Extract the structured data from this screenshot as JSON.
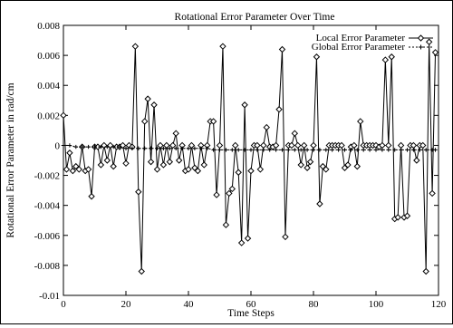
{
  "chart_data": {
    "type": "line",
    "title": "Rotational Error Parameter Over Time",
    "xlabel": "Time Steps",
    "ylabel": "Rotational Error Parameter in rad/cm",
    "xlim": [
      0,
      120
    ],
    "ylim": [
      -0.01,
      0.008
    ],
    "xticks": [
      0,
      20,
      40,
      60,
      80,
      100,
      120
    ],
    "yticks": [
      -0.01,
      -0.008,
      -0.006,
      -0.004,
      -0.002,
      0,
      0.002,
      0.004,
      0.006,
      0.008
    ],
    "xtick_labels": [
      "0",
      "20",
      "40",
      "60",
      "80",
      "100",
      "120"
    ],
    "ytick_labels": [
      "-0.01",
      "-0.008",
      "-0.006",
      "-0.004",
      "-0.002",
      "0",
      "0.002",
      "0.004",
      "0.006",
      "0.008"
    ],
    "grid": false,
    "legend_position": "top-right",
    "series": [
      {
        "name": "Local Error Parameter",
        "marker": "diamond",
        "color": "#000000",
        "x": [
          0,
          1,
          2,
          3,
          4,
          5,
          6,
          7,
          8,
          9,
          10,
          11,
          12,
          13,
          14,
          15,
          16,
          17,
          18,
          19,
          20,
          21,
          22,
          23,
          24,
          25,
          26,
          27,
          28,
          29,
          30,
          31,
          32,
          33,
          34,
          35,
          36,
          37,
          38,
          39,
          40,
          41,
          42,
          43,
          44,
          45,
          46,
          47,
          48,
          49,
          50,
          51,
          52,
          53,
          54,
          55,
          56,
          57,
          58,
          59,
          60,
          61,
          62,
          63,
          64,
          65,
          66,
          67,
          68,
          69,
          70,
          71,
          72,
          73,
          74,
          75,
          76,
          77,
          78,
          79,
          80,
          81,
          82,
          83,
          84,
          85,
          86,
          87,
          88,
          89,
          90,
          91,
          92,
          93,
          94,
          95,
          96,
          97,
          98,
          99,
          100,
          101,
          102,
          103,
          104,
          105,
          106,
          107,
          108,
          109,
          110,
          111,
          112,
          113,
          114,
          115,
          116,
          117,
          118,
          119
        ],
        "values": [
          0.002,
          -0.0016,
          -0.0005,
          -0.0017,
          -0.0014,
          -0.0016,
          -0.0001,
          -0.0017,
          -0.0016,
          -0.0034,
          -0.0001,
          -0.0001,
          -0.0013,
          0.0,
          -0.001,
          0.0,
          -0.0014,
          -0.0001,
          -0.0001,
          0.0,
          -0.0012,
          0.0,
          -0.0001,
          0.0066,
          -0.0031,
          -0.0084,
          0.0016,
          0.0031,
          -0.0011,
          0.0027,
          -0.0016,
          0.0,
          -0.0013,
          0.0,
          -0.0011,
          0.0,
          0.0008,
          -0.001,
          0.0,
          -0.0017,
          -0.0016,
          0.0,
          -0.0015,
          -0.0017,
          0.0,
          -0.0013,
          0.0,
          0.0016,
          0.0016,
          -0.0033,
          0.0,
          0.0066,
          -0.0053,
          -0.0032,
          -0.0029,
          0.0,
          -0.0018,
          -0.0065,
          0.0027,
          -0.0062,
          -0.0017,
          0.0,
          0.0,
          -0.0016,
          0.0,
          0.0012,
          -0.0001,
          -0.0001,
          0.0,
          0.0024,
          0.0064,
          -0.0061,
          0.0,
          0.0,
          0.0008,
          0.0,
          -0.0013,
          0.0,
          -0.0015,
          -0.0011,
          0.0,
          0.0059,
          -0.0039,
          -0.0014,
          -0.0016,
          0.0,
          0.0,
          0.0,
          0.0,
          0.0,
          -0.0015,
          -0.0013,
          -0.0001,
          0.0,
          -0.0014,
          0.0016,
          0.0,
          0.0,
          0.0,
          0.0,
          0.0,
          -0.0001,
          0.0,
          0.0057,
          0.0,
          0.0059,
          -0.0049,
          -0.0048,
          0.0,
          -0.0048,
          -0.0047,
          0.0,
          0.0,
          -0.001,
          0.0,
          0.0,
          -0.0084,
          0.0069,
          -0.0032,
          0.0062
        ]
      },
      {
        "name": "Global Error Parameter",
        "marker": "plus",
        "color": "#000000",
        "x": [
          0,
          2,
          4,
          6,
          8,
          10,
          12,
          14,
          16,
          18,
          20,
          22,
          24,
          26,
          28,
          30,
          32,
          34,
          36,
          38,
          40,
          42,
          44,
          46,
          48,
          50,
          52,
          54,
          56,
          58,
          60,
          62,
          64,
          66,
          68,
          70,
          72,
          74,
          76,
          78,
          80,
          82,
          84,
          86,
          88,
          90,
          92,
          94,
          96,
          98,
          100,
          102,
          104,
          106,
          108,
          110,
          112,
          114,
          116,
          118,
          119
        ],
        "values": [
          0.0,
          0.0,
          -0.0001,
          -0.0001,
          -0.0001,
          -0.0001,
          -0.0001,
          -0.0001,
          -0.0001,
          -0.0001,
          -0.0002,
          -0.0002,
          -0.0002,
          -0.0002,
          -0.0002,
          -0.0002,
          -0.0002,
          -0.0002,
          -0.0002,
          -0.0002,
          -0.0002,
          -0.0002,
          -0.0002,
          -0.0002,
          -0.0003,
          -0.0003,
          -0.0003,
          -0.0003,
          -0.0003,
          -0.0003,
          -0.0003,
          -0.0003,
          -0.0003,
          -0.0003,
          -0.0003,
          -0.0003,
          -0.0003,
          -0.0003,
          -0.0003,
          -0.0003,
          -0.0003,
          -0.0003,
          -0.0003,
          -0.0003,
          -0.0003,
          -0.0003,
          -0.0003,
          -0.0003,
          -0.0003,
          -0.0003,
          -0.0003,
          -0.0003,
          -0.0003,
          -0.0003,
          -0.0003,
          -0.0003,
          -0.0003,
          -0.0003,
          -0.0003,
          -0.0003,
          -0.0003
        ]
      }
    ]
  }
}
